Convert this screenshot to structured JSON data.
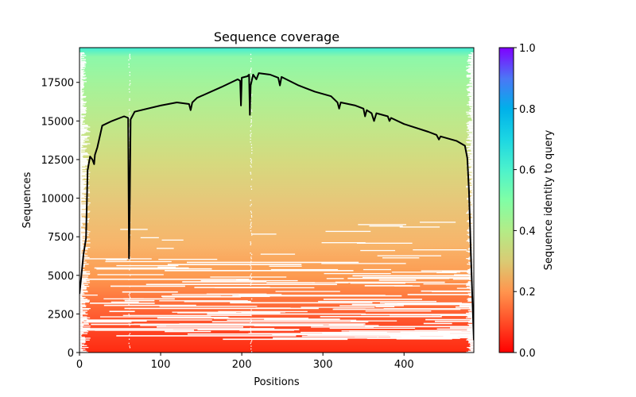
{
  "chart_data": {
    "type": "heatmap",
    "title": "Sequence coverage",
    "xlabel": "Positions",
    "ylabel": "Sequences",
    "xlim": [
      0,
      486
    ],
    "ylim": [
      0,
      19750
    ],
    "xticks": [
      0,
      100,
      200,
      300,
      400
    ],
    "yticks": [
      0,
      2500,
      5000,
      7500,
      10000,
      12500,
      15000,
      17500
    ],
    "grid": false,
    "colorbar": {
      "label": "Sequence identity to query",
      "colormap": "rainbow_r",
      "range": [
        0.0,
        1.0
      ],
      "ticks": [
        "0.0",
        "0.2",
        "0.4",
        "0.6",
        "0.8",
        "1.0"
      ]
    },
    "heatmap_description": "Rows are aligned sequences sorted by identity to query (low at bottom, high at top); each row is colored by its identity and white where the sequence has gaps.",
    "identity_by_row_fraction": [
      {
        "row_fraction": 0.0,
        "identity": 0.02
      },
      {
        "row_fraction": 0.05,
        "identity": 0.06
      },
      {
        "row_fraction": 0.15,
        "identity": 0.14
      },
      {
        "row_fraction": 0.25,
        "identity": 0.22
      },
      {
        "row_fraction": 0.35,
        "identity": 0.27
      },
      {
        "row_fraction": 0.5,
        "identity": 0.32
      },
      {
        "row_fraction": 0.65,
        "identity": 0.37
      },
      {
        "row_fraction": 0.8,
        "identity": 0.42
      },
      {
        "row_fraction": 0.95,
        "identity": 0.5
      },
      {
        "row_fraction": 1.0,
        "identity": 0.6
      }
    ],
    "series": [
      {
        "name": "coverage",
        "color": "#000000",
        "x": [
          0,
          2,
          5,
          8,
          10,
          13,
          16,
          18,
          19,
          22,
          28,
          40,
          55,
          60,
          61,
          62,
          63,
          68,
          100,
          120,
          135,
          137,
          139,
          145,
          175,
          195,
          198,
          199,
          200,
          207,
          209,
          210,
          211,
          214,
          218,
          221,
          235,
          245,
          247,
          249,
          270,
          290,
          310,
          318,
          320,
          322,
          340,
          350,
          352,
          354,
          360,
          363,
          366,
          380,
          382,
          384,
          400,
          430,
          440,
          443,
          445,
          465,
          475,
          478,
          480,
          482,
          484,
          486
        ],
        "y": [
          3800,
          4800,
          6400,
          7400,
          11800,
          12700,
          12500,
          12200,
          12800,
          13300,
          14700,
          15000,
          15300,
          15200,
          6100,
          10000,
          15100,
          15600,
          16000,
          16200,
          16100,
          15700,
          16200,
          16500,
          17200,
          17700,
          17600,
          16000,
          17800,
          17900,
          18000,
          15400,
          17300,
          18000,
          17700,
          18100,
          18000,
          17800,
          17300,
          17850,
          17300,
          16900,
          16600,
          16200,
          15800,
          16200,
          16000,
          15800,
          15300,
          15700,
          15500,
          15000,
          15500,
          15300,
          15000,
          15200,
          14800,
          14300,
          14100,
          13800,
          14000,
          13700,
          13400,
          12600,
          10500,
          7000,
          3800,
          800
        ]
      }
    ]
  }
}
